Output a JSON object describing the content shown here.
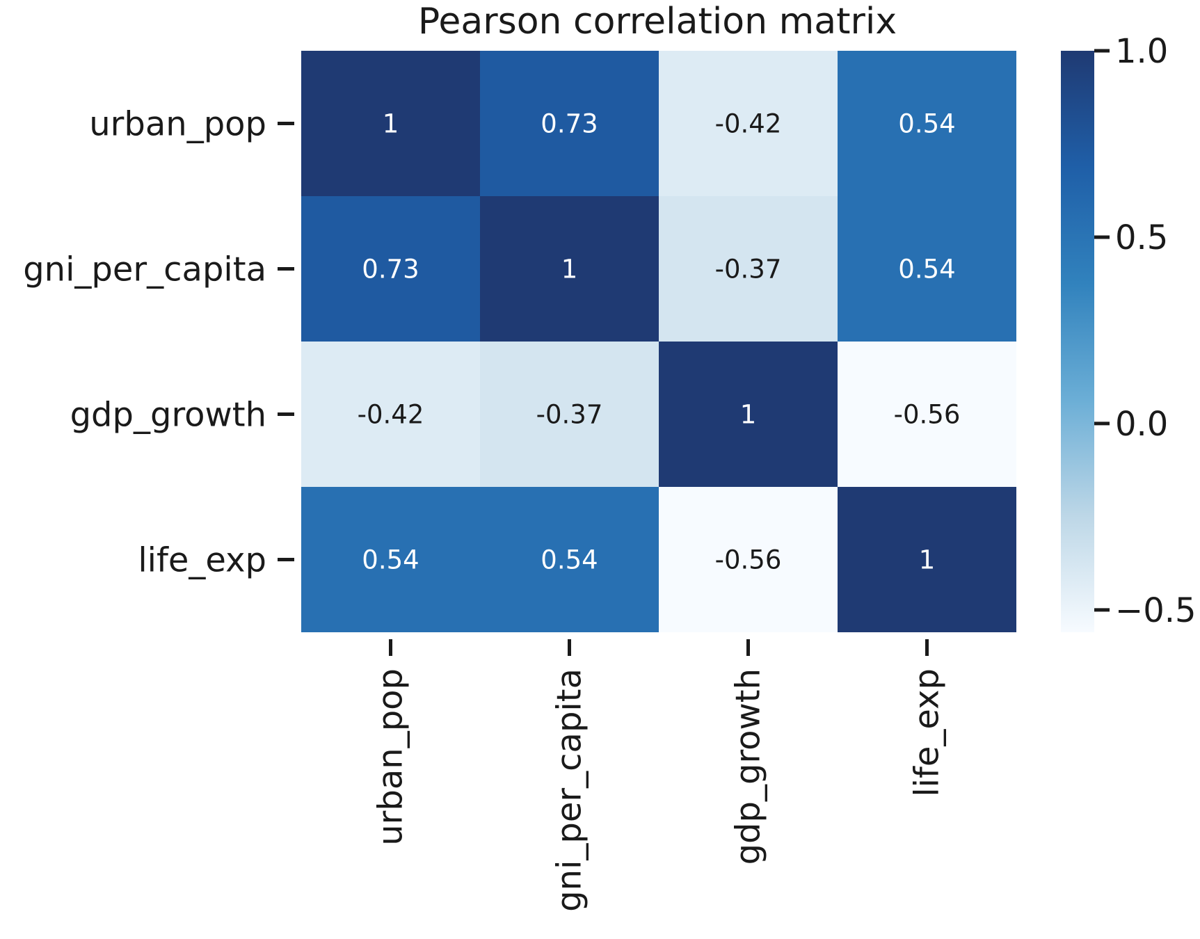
{
  "chart_data": {
    "type": "heatmap",
    "title": "Pearson correlation matrix",
    "xlabel": "",
    "ylabel": "",
    "rows": [
      "urban_pop",
      "gni_per_capita",
      "gdp_growth",
      "life_exp"
    ],
    "columns": [
      "urban_pop",
      "gni_per_capita",
      "gdp_growth",
      "life_exp"
    ],
    "values": [
      [
        1,
        0.73,
        -0.42,
        0.54
      ],
      [
        0.73,
        1,
        -0.37,
        0.54
      ],
      [
        -0.42,
        -0.37,
        1,
        -0.56
      ],
      [
        0.54,
        0.54,
        -0.56,
        1
      ]
    ],
    "cell_labels": [
      [
        "1",
        "0.73",
        "-0.42",
        "0.54"
      ],
      [
        "0.73",
        "1",
        "-0.37",
        "0.54"
      ],
      [
        "-0.42",
        "-0.37",
        "1",
        "-0.56"
      ],
      [
        "0.54",
        "0.54",
        "-0.56",
        "1"
      ]
    ],
    "colorbar": {
      "min": -0.56,
      "max": 1,
      "ticks": [
        1.0,
        0.5,
        0.0,
        -0.5
      ],
      "tick_labels": [
        "1.0",
        "0.5",
        "0.0",
        "−0.5"
      ]
    },
    "colormap": [
      "#f7fbff",
      "#bdd7e7",
      "#6baed6",
      "#3182bd",
      "#1f5fa8",
      "#1f3a73"
    ],
    "annotation_dark_text": "#1a1a1a",
    "annotation_light_text": "#ffffff",
    "grid": false
  }
}
